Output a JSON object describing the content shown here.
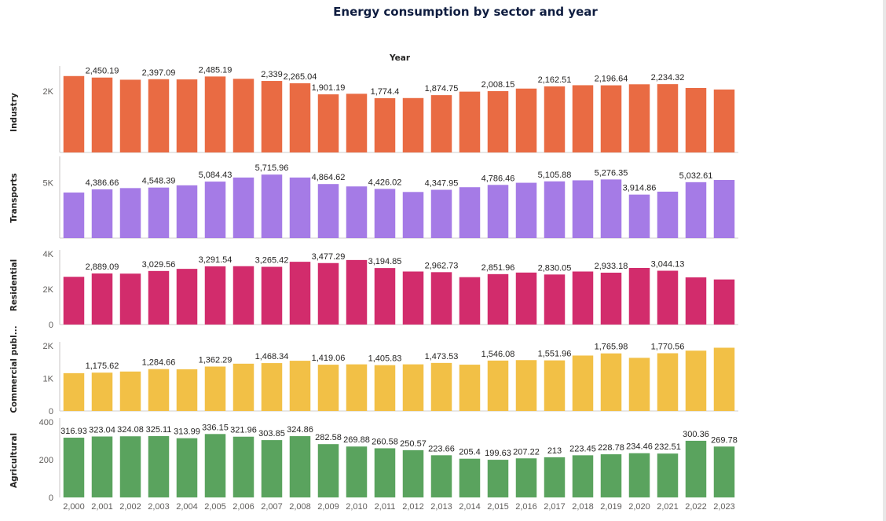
{
  "chart_data": {
    "type": "bar",
    "title": "Energy consumption by sector and year",
    "xlabel": "Year",
    "categories": [
      "2,000",
      "2,001",
      "2,002",
      "2,003",
      "2,004",
      "2,005",
      "2,006",
      "2,007",
      "2,008",
      "2,009",
      "2,010",
      "2,011",
      "2,012",
      "2,013",
      "2,014",
      "2,015",
      "2,016",
      "2,017",
      "2,018",
      "2,019",
      "2,020",
      "2,021",
      "2,022",
      "2,023"
    ],
    "grid": false,
    "panels": [
      {
        "name": "Industry",
        "color": "#e96b43",
        "ylim": [
          0,
          2700
        ],
        "yticks": [
          {
            "value": 2000,
            "label": "2K"
          }
        ],
        "values": [
          2500,
          2450.19,
          2380,
          2397.09,
          2390,
          2485.19,
          2410,
          2339,
          2265.04,
          1901.19,
          1920,
          1774.4,
          1780,
          1874.75,
          1990,
          2008.15,
          2090,
          2162.51,
          2200,
          2196.64,
          2230,
          2234.32,
          2110,
          2060
        ],
        "labels": [
          "",
          "2,450.19",
          "",
          "2,397.09",
          "",
          "2,485.19",
          "",
          "2,339",
          "2,265.04",
          "1,901.19",
          "",
          "1,774.4",
          "",
          "1,874.75",
          "",
          "2,008.15",
          "",
          "2,162.51",
          "",
          "2,196.64",
          "",
          "2,234.32",
          "",
          ""
        ]
      },
      {
        "name": "Transports",
        "color": "#a57be6",
        "ylim": [
          0,
          7000
        ],
        "yticks": [
          {
            "value": 5000,
            "label": "5K"
          }
        ],
        "values": [
          4100,
          4386.66,
          4500,
          4548.39,
          4750,
          5084.43,
          5450,
          5715.96,
          5450,
          4864.62,
          4650,
          4426.02,
          4150,
          4347.95,
          4580,
          4786.46,
          4980,
          5105.88,
          5200,
          5276.35,
          3914.86,
          4180,
          5032.61,
          5230
        ],
        "labels": [
          "",
          "4,386.66",
          "",
          "4,548.39",
          "",
          "5,084.43",
          "",
          "5,715.96",
          "",
          "4,864.62",
          "",
          "4,426.02",
          "",
          "4,347.95",
          "",
          "4,786.46",
          "",
          "5,105.88",
          "",
          "5,276.35",
          "3,914.86",
          "",
          "5,032.61",
          ""
        ]
      },
      {
        "name": "Residential",
        "color": "#d22c6c",
        "ylim": [
          0,
          4000
        ],
        "yticks": [
          {
            "value": 0,
            "label": "0"
          },
          {
            "value": 2000,
            "label": "2K"
          },
          {
            "value": 4000,
            "label": "4K"
          }
        ],
        "values": [
          2700,
          2889.09,
          2880,
          3029.56,
          3150,
          3291.54,
          3300,
          3265.42,
          3550,
          3477.29,
          3650,
          3194.85,
          3000,
          2962.73,
          2680,
          2851.96,
          2940,
          2830.05,
          3000,
          2933.18,
          3200,
          3044.13,
          2670,
          2550
        ],
        "labels": [
          "",
          "2,889.09",
          "",
          "3,029.56",
          "",
          "3,291.54",
          "",
          "3,265.42",
          "",
          "3,477.29",
          "",
          "3,194.85",
          "",
          "2,962.73",
          "",
          "2,851.96",
          "",
          "2,830.05",
          "",
          "2,933.18",
          "",
          "3,044.13",
          "",
          ""
        ]
      },
      {
        "name": "Commercial publ...",
        "color": "#f2c046",
        "ylim": [
          0,
          2000
        ],
        "yticks": [
          {
            "value": 0,
            "label": "0"
          },
          {
            "value": 1000,
            "label": "1K"
          },
          {
            "value": 2000,
            "label": "2K"
          }
        ],
        "values": [
          1160,
          1175.62,
          1210,
          1284.66,
          1280,
          1362.29,
          1450,
          1468.34,
          1540,
          1419.06,
          1430,
          1405.83,
          1430,
          1473.53,
          1420,
          1546.08,
          1560,
          1551.96,
          1700,
          1765.98,
          1630,
          1770.56,
          1850,
          1940
        ],
        "labels": [
          "",
          "1,175.62",
          "",
          "1,284.66",
          "",
          "1,362.29",
          "",
          "1,468.34",
          "",
          "1,419.06",
          "",
          "1,405.83",
          "",
          "1,473.53",
          "",
          "1,546.08",
          "",
          "1,551.96",
          "",
          "1,765.98",
          "",
          "1,770.56",
          "",
          ""
        ]
      },
      {
        "name": "Agricultural",
        "color": "#5aa35e",
        "ylim": [
          0,
          400
        ],
        "yticks": [
          {
            "value": 0,
            "label": "0"
          },
          {
            "value": 200,
            "label": "200"
          },
          {
            "value": 400,
            "label": "400"
          }
        ],
        "values": [
          316.93,
          323.04,
          324.08,
          325.11,
          313.99,
          336.15,
          321.96,
          303.85,
          324.86,
          282.58,
          269.88,
          260.58,
          250.57,
          223.66,
          205.4,
          199.63,
          207.22,
          213,
          223.45,
          228.78,
          234.46,
          232.51,
          300.36,
          269.78
        ],
        "labels": [
          "316.93",
          "323.04",
          "324.08",
          "325.11",
          "313.99",
          "336.15",
          "321.96",
          "303.85",
          "324.86",
          "282.58",
          "269.88",
          "260.58",
          "250.57",
          "223.66",
          "205.4",
          "199.63",
          "207.22",
          "213",
          "223.45",
          "228.78",
          "234.46",
          "232.51",
          "300.36",
          "269.78"
        ]
      }
    ]
  }
}
